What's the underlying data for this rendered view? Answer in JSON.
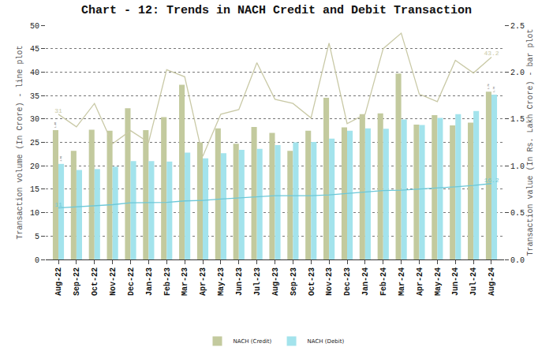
{
  "chart_data": {
    "type": "bar",
    "title": "Chart - 12: Trends in NACH Credit and Debit Transaction",
    "y_label": "Transaction volume (In Crore) - line plot",
    "y2_label": "Transaction value (In Rs. Lakh Crore) - bar plot",
    "categories": [
      "Aug-22",
      "Sep-22",
      "Oct-22",
      "Nov-22",
      "Dec-22",
      "Jan-23",
      "Feb-23",
      "Mar-23",
      "Apr-23",
      "May-23",
      "Jun-23",
      "Jul-23",
      "Aug-23",
      "Sep-23",
      "Oct-23",
      "Nov-23",
      "Dec-23",
      "Jan-24",
      "Feb-24",
      "Mar-24",
      "Apr-24",
      "May-24",
      "Jun-24",
      "Jul-24",
      "Aug-24"
    ],
    "series": [
      {
        "name": "NACH (Credit)",
        "type": "bar",
        "axis": "y2",
        "color": "#c3ca9e",
        "values": [
          1.38,
          1.16,
          1.385,
          1.375,
          1.615,
          1.38,
          1.52,
          1.865,
          1.25,
          1.4,
          1.235,
          1.415,
          1.35,
          1.16,
          1.375,
          1.725,
          1.41,
          1.55,
          1.56,
          1.985,
          1.44,
          1.54,
          1.43,
          1.46,
          1.79
        ],
        "value_labels": [
          "1.38",
          null,
          null,
          null,
          null,
          null,
          null,
          null,
          null,
          null,
          null,
          null,
          null,
          null,
          null,
          null,
          null,
          null,
          null,
          null,
          null,
          null,
          null,
          null,
          "1.79"
        ]
      },
      {
        "name": "NACH (Debit)",
        "type": "bar",
        "axis": "y2",
        "color": "#a3e3ec",
        "values": [
          1.02,
          0.955,
          0.965,
          0.99,
          1.05,
          1.05,
          1.045,
          1.14,
          1.08,
          1.135,
          1.17,
          1.18,
          1.22,
          1.25,
          1.255,
          1.29,
          1.375,
          1.4,
          1.395,
          1.495,
          1.435,
          1.51,
          1.55,
          1.585,
          1.76
        ],
        "value_labels": [
          "1.02",
          null,
          null,
          null,
          null,
          null,
          null,
          null,
          null,
          null,
          null,
          null,
          null,
          null,
          null,
          null,
          null,
          null,
          null,
          null,
          null,
          null,
          null,
          null,
          "1.76"
        ]
      },
      {
        "type": "line",
        "color": "#c9c9a6",
        "values": [
          31,
          28.3,
          33.3,
          24.7,
          27.5,
          25,
          40.5,
          39,
          22,
          31,
          32,
          42,
          34.2,
          33.3,
          30.2,
          46.2,
          29,
          31,
          45,
          48.3,
          35.3,
          33.7,
          42.5,
          39.8,
          43.2
        ],
        "value_labels": [
          "31",
          null,
          null,
          null,
          null,
          null,
          null,
          null,
          null,
          null,
          null,
          null,
          null,
          null,
          null,
          null,
          null,
          null,
          null,
          null,
          null,
          null,
          null,
          null,
          "43.2"
        ]
      },
      {
        "type": "line",
        "color": "#6cc8d8",
        "values": [
          11,
          11.2,
          11.4,
          11.7,
          12.1,
          12.2,
          12.2,
          12.5,
          12.6,
          12.9,
          13.1,
          13.3,
          13.6,
          13.6,
          13.6,
          13.8,
          14.1,
          14.4,
          14.7,
          14.8,
          15.0,
          15.2,
          15.5,
          15.8,
          16.2
        ],
        "value_labels": [
          "11",
          null,
          null,
          null,
          null,
          null,
          null,
          null,
          null,
          null,
          null,
          null,
          null,
          null,
          null,
          null,
          null,
          null,
          null,
          null,
          null,
          null,
          null,
          null,
          "16.2"
        ]
      }
    ],
    "ylim": [
      0,
      50
    ],
    "yticks": [
      0,
      5,
      10,
      15,
      20,
      25,
      30,
      35,
      40,
      45,
      50
    ],
    "y2lim": [
      0,
      2.5
    ],
    "y2ticks": [
      {
        "value": 0,
        "label": "0.0"
      },
      0.5,
      {
        "value": 1,
        "label": "1.0"
      },
      1.5,
      {
        "value": 2,
        "label": "2.0"
      },
      2.5
    ],
    "grid": true,
    "legend": "bottom"
  }
}
